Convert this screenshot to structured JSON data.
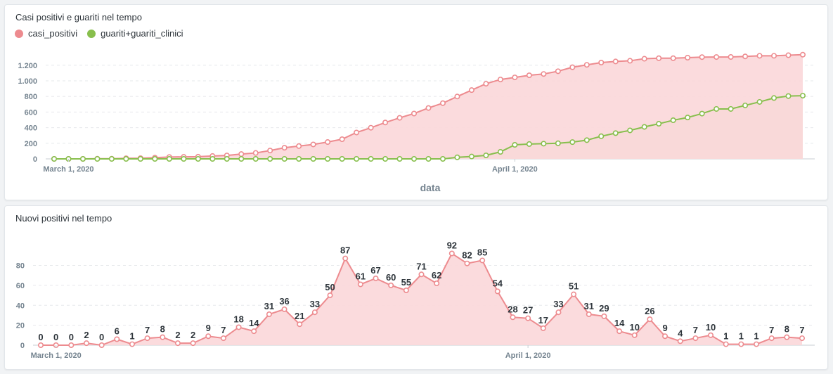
{
  "colors": {
    "positivi": "#ed8b8f",
    "positivi_fill": "#fbd9db",
    "guariti": "#88bf4d",
    "guariti_fill": "#d3d6aa",
    "grid": "#e6e8eb"
  },
  "chart_data": [
    {
      "type": "area",
      "title": "Casi positivi e guariti nel tempo",
      "xlabel": "data",
      "ylabel": "",
      "x_tick_labels": [
        {
          "index": 1,
          "label": "March 1, 2020"
        },
        {
          "index": 32,
          "label": "April 1, 2020"
        }
      ],
      "y_ticks": [
        {
          "value": 0,
          "label": "0"
        },
        {
          "value": 200,
          "label": "200"
        },
        {
          "value": 400,
          "label": "400"
        },
        {
          "value": 600,
          "label": "600"
        },
        {
          "value": 800,
          "label": "800"
        },
        {
          "value": 1000,
          "label": "1.000"
        },
        {
          "value": 1200,
          "label": "1.200"
        }
      ],
      "ylim": [
        0,
        1360
      ],
      "grid": true,
      "legend": "top-left",
      "series": [
        {
          "name": "casi_positivi",
          "color_key": "positivi",
          "values": [
            0,
            0,
            0,
            2,
            2,
            8,
            9,
            16,
            24,
            26,
            28,
            37,
            44,
            62,
            76,
            107,
            143,
            164,
            185,
            216,
            252,
            338,
            399,
            466,
            526,
            581,
            652,
            714,
            799,
            881,
            963,
            1017,
            1044,
            1071,
            1088,
            1123,
            1174,
            1205,
            1234,
            1248,
            1257,
            1283,
            1290,
            1290,
            1297,
            1304,
            1305,
            1306,
            1313,
            1321,
            1321,
            1328,
            1335
          ]
        },
        {
          "name": "guariti+guariti_clinici",
          "color_key": "guariti",
          "values": [
            0,
            0,
            0,
            0,
            0,
            0,
            0,
            0,
            0,
            0,
            0,
            0,
            0,
            0,
            0,
            0,
            0,
            0,
            0,
            0,
            0,
            0,
            0,
            0,
            0,
            0,
            0,
            0,
            20,
            30,
            45,
            90,
            180,
            190,
            195,
            200,
            215,
            240,
            290,
            330,
            365,
            410,
            450,
            495,
            530,
            580,
            640,
            640,
            685,
            730,
            780,
            805,
            810
          ]
        }
      ]
    },
    {
      "type": "area",
      "title": "Nuovi positivi nel tempo",
      "xlabel": "",
      "ylabel": "",
      "x_tick_labels": [
        {
          "index": 1,
          "label": "March 1, 2020"
        },
        {
          "index": 32,
          "label": "April 1, 2020"
        }
      ],
      "y_ticks": [
        {
          "value": 0,
          "label": "0"
        },
        {
          "value": 20,
          "label": "20"
        },
        {
          "value": 40,
          "label": "40"
        },
        {
          "value": 60,
          "label": "60"
        },
        {
          "value": 80,
          "label": "80"
        }
      ],
      "ylim": [
        0,
        98
      ],
      "grid": true,
      "legend": "none",
      "show_data_labels": true,
      "series": [
        {
          "name": "",
          "color_key": "positivi",
          "values": [
            0,
            0,
            0,
            2,
            0,
            6,
            1,
            7,
            8,
            2,
            2,
            9,
            7,
            18,
            14,
            31,
            36,
            21,
            33,
            50,
            87,
            61,
            67,
            60,
            55,
            71,
            62,
            92,
            82,
            85,
            54,
            28,
            27,
            17,
            33,
            51,
            31,
            29,
            14,
            10,
            26,
            9,
            4,
            7,
            10,
            1,
            1,
            1,
            7,
            8,
            7
          ],
          "labels": [
            "0",
            "0",
            "0",
            "2",
            "0",
            "6",
            "1",
            "7",
            "8",
            "2",
            "2",
            "9",
            "7",
            "18",
            "14",
            "31",
            "36",
            "21",
            "33",
            "50",
            "87",
            "61",
            "67",
            "60",
            "55",
            "71",
            "62",
            "92",
            "82",
            "85",
            "54",
            "28",
            "27",
            "17",
            "33",
            "51",
            "31",
            "29",
            "14",
            "10",
            "26",
            "9",
            "4",
            "7",
            "10",
            "1",
            "1",
            "1",
            "7",
            "8",
            "7"
          ]
        }
      ]
    }
  ]
}
